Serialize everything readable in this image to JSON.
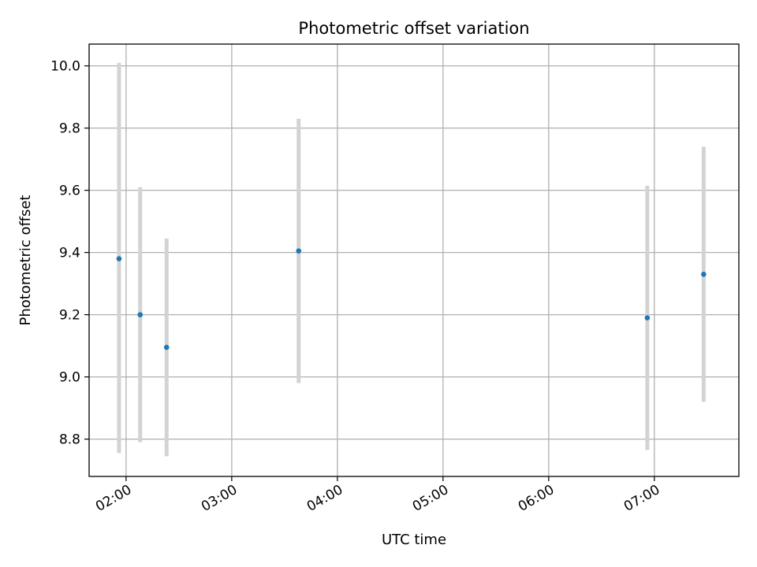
{
  "chart_data": {
    "type": "scatter",
    "title": "Photometric offset variation",
    "xlabel": "UTC time",
    "ylabel": "Photometric offset",
    "xlim": [
      "01:39",
      "07:48"
    ],
    "ylim": [
      8.68,
      10.07
    ],
    "x_ticks": [
      "02:00",
      "03:00",
      "04:00",
      "05:00",
      "06:00",
      "07:00"
    ],
    "y_ticks": [
      8.8,
      9.0,
      9.2,
      9.4,
      9.6,
      9.8,
      10.0
    ],
    "grid": true,
    "colors": {
      "points": "#1f77b4",
      "error_bars": "#d3d3d3"
    },
    "points": [
      {
        "x": "01:56",
        "y": 9.38,
        "y_low": 8.755,
        "y_high": 10.01
      },
      {
        "x": "02:08",
        "y": 9.2,
        "y_low": 8.79,
        "y_high": 9.61
      },
      {
        "x": "02:23",
        "y": 9.095,
        "y_low": 8.745,
        "y_high": 9.445
      },
      {
        "x": "03:38",
        "y": 9.405,
        "y_low": 8.98,
        "y_high": 9.83
      },
      {
        "x": "06:56",
        "y": 9.19,
        "y_low": 8.765,
        "y_high": 9.615
      },
      {
        "x": "07:28",
        "y": 9.33,
        "y_low": 8.92,
        "y_high": 9.74
      }
    ]
  }
}
